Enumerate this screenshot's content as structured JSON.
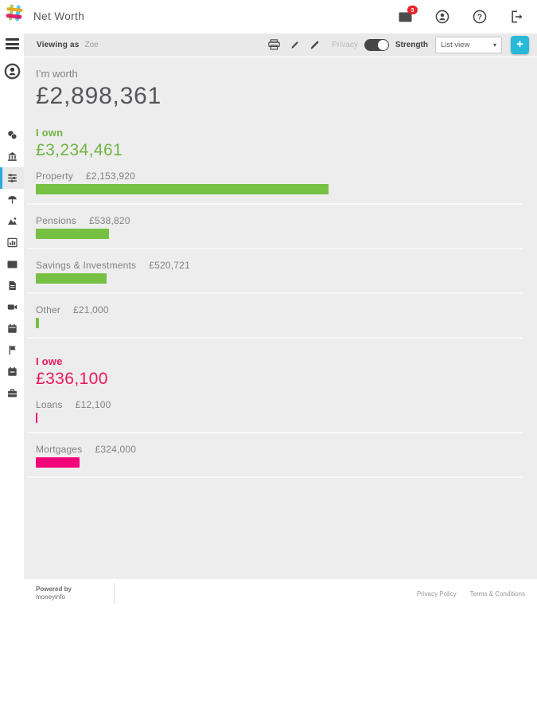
{
  "header": {
    "title": "Net Worth",
    "mail_badge": "3"
  },
  "toolbar": {
    "viewing_as_label": "Viewing as",
    "viewing_as_value": "Zoe",
    "privacy_label": "Privacy",
    "strength_label": "Strength",
    "view_dropdown_value": "List view",
    "add_button": "+"
  },
  "summary": {
    "worth_label": "I’m worth",
    "worth_value": "£2,898,361"
  },
  "chart_data": {
    "type": "bar",
    "title": "Net Worth",
    "bar_scale": {
      "max_value": 2153920,
      "max_width_pct": 60.1
    },
    "sections": [
      {
        "label": "I own",
        "total_text": "£3,234,461",
        "total_value": 3234461,
        "color": "#76c043",
        "items": [
          {
            "name": "Property",
            "value_text": "£2,153,920",
            "value": 2153920
          },
          {
            "name": "Pensions",
            "value_text": "£538,820",
            "value": 538820
          },
          {
            "name": "Savings & Investments",
            "value_text": "£520,721",
            "value": 520721
          },
          {
            "name": "Other",
            "value_text": "£21,000",
            "value": 21000
          }
        ]
      },
      {
        "label": "I owe",
        "total_text": "£336,100",
        "total_value": 336100,
        "color": "#f2077b",
        "items": [
          {
            "name": "Loans",
            "value_text": "£12,100",
            "value": 12100
          },
          {
            "name": "Mortgages",
            "value_text": "£324,000",
            "value": 324000
          }
        ]
      }
    ]
  },
  "footer": {
    "powered_by": "Powered by",
    "brand": "moneyinfo",
    "links": [
      "Privacy Policy",
      "Terms & Conditions"
    ]
  },
  "colors": {
    "positive": "#6fb644",
    "positive_bar": "#76c043",
    "negative": "#e8185f",
    "negative_bar": "#f2077b",
    "accent_teal": "#29b9d8",
    "active_item": "#29abe2",
    "badge_red": "#e8252a"
  },
  "icons": {
    "chevron_down": "▾",
    "plus": "+"
  }
}
